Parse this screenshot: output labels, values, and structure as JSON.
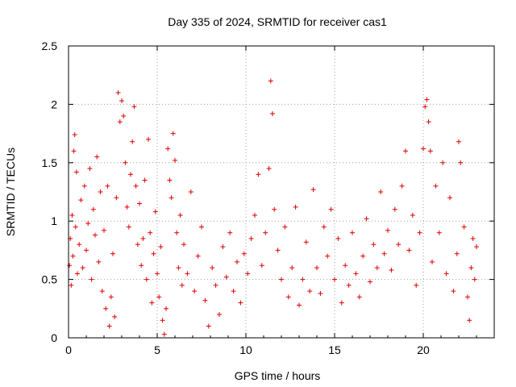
{
  "chart_data": {
    "type": "scatter",
    "title": "Day 335 of 2024, SRMTID for receiver cas1",
    "xlabel": "GPS time / hours",
    "ylabel": "SRMTID / TECUs",
    "xlim": [
      0,
      24
    ],
    "ylim": [
      0,
      2.5
    ],
    "xticks": [
      0,
      5,
      10,
      15,
      20
    ],
    "xtick_labels": [
      "0",
      "5",
      "10",
      "15",
      "20"
    ],
    "yticks": [
      0,
      0.5,
      1,
      1.5,
      2,
      2.5
    ],
    "ytick_labels": [
      "0",
      "0.5",
      "1",
      "1.5",
      "2",
      "2.5"
    ],
    "grid": true,
    "marker": "+",
    "color": "#e00000",
    "series": [
      {
        "name": "cas1",
        "points": [
          [
            0.05,
            0.62
          ],
          [
            0.1,
            0.85
          ],
          [
            0.15,
            0.45
          ],
          [
            0.2,
            1.05
          ],
          [
            0.25,
            0.7
          ],
          [
            0.3,
            1.6
          ],
          [
            0.35,
            1.74
          ],
          [
            0.4,
            0.95
          ],
          [
            0.45,
            1.42
          ],
          [
            0.5,
            0.55
          ],
          [
            0.6,
            0.8
          ],
          [
            0.7,
            1.18
          ],
          [
            0.8,
            0.6
          ],
          [
            0.9,
            1.3
          ],
          [
            1.0,
            0.75
          ],
          [
            1.1,
            0.98
          ],
          [
            1.2,
            1.45
          ],
          [
            1.3,
            0.5
          ],
          [
            1.4,
            1.1
          ],
          [
            1.5,
            0.88
          ],
          [
            1.6,
            1.55
          ],
          [
            1.7,
            0.65
          ],
          [
            1.8,
            1.25
          ],
          [
            1.9,
            0.4
          ],
          [
            2.0,
            0.92
          ],
          [
            2.1,
            0.25
          ],
          [
            2.2,
            1.3
          ],
          [
            2.3,
            0.1
          ],
          [
            2.4,
            0.35
          ],
          [
            2.5,
            0.72
          ],
          [
            2.6,
            0.18
          ],
          [
            2.7,
            1.2
          ],
          [
            2.8,
            2.1
          ],
          [
            2.9,
            1.85
          ],
          [
            3.0,
            2.03
          ],
          [
            3.1,
            1.9
          ],
          [
            3.2,
            1.5
          ],
          [
            3.3,
            1.12
          ],
          [
            3.4,
            0.95
          ],
          [
            3.5,
            1.4
          ],
          [
            3.6,
            1.68
          ],
          [
            3.7,
            1.98
          ],
          [
            3.8,
            1.3
          ],
          [
            3.9,
            0.8
          ],
          [
            4.0,
            1.15
          ],
          [
            4.1,
            0.62
          ],
          [
            4.2,
            0.85
          ],
          [
            4.3,
            1.35
          ],
          [
            4.4,
            0.5
          ],
          [
            4.5,
            1.7
          ],
          [
            4.6,
            0.9
          ],
          [
            4.7,
            0.3
          ],
          [
            4.8,
            0.72
          ],
          [
            4.9,
            1.08
          ],
          [
            5.0,
            0.55
          ],
          [
            5.1,
            0.35
          ],
          [
            5.2,
            0.78
          ],
          [
            5.3,
            0.15
          ],
          [
            5.4,
            0.03
          ],
          [
            5.5,
            0.25
          ],
          [
            5.6,
            1.62
          ],
          [
            5.7,
            1.35
          ],
          [
            5.8,
            1.2
          ],
          [
            5.9,
            1.75
          ],
          [
            6.0,
            1.52
          ],
          [
            6.1,
            0.9
          ],
          [
            6.2,
            0.6
          ],
          [
            6.3,
            1.05
          ],
          [
            6.4,
            0.45
          ],
          [
            6.5,
            0.8
          ],
          [
            6.7,
            0.55
          ],
          [
            6.9,
            1.25
          ],
          [
            7.1,
            0.4
          ],
          [
            7.3,
            0.7
          ],
          [
            7.5,
            0.95
          ],
          [
            7.7,
            0.32
          ],
          [
            7.9,
            0.1
          ],
          [
            8.1,
            0.6
          ],
          [
            8.3,
            0.45
          ],
          [
            8.5,
            0.2
          ],
          [
            8.7,
            0.78
          ],
          [
            8.9,
            0.52
          ],
          [
            9.1,
            0.9
          ],
          [
            9.3,
            0.4
          ],
          [
            9.5,
            0.65
          ],
          [
            9.7,
            0.3
          ],
          [
            9.9,
            0.72
          ],
          [
            10.1,
            0.55
          ],
          [
            10.3,
            0.85
          ],
          [
            10.5,
            1.05
          ],
          [
            10.7,
            1.4
          ],
          [
            10.9,
            0.62
          ],
          [
            11.1,
            0.9
          ],
          [
            11.3,
            1.45
          ],
          [
            11.4,
            2.2
          ],
          [
            11.5,
            1.92
          ],
          [
            11.6,
            1.1
          ],
          [
            11.8,
            0.75
          ],
          [
            12.0,
            0.5
          ],
          [
            12.2,
            0.95
          ],
          [
            12.4,
            0.35
          ],
          [
            12.6,
            0.6
          ],
          [
            12.8,
            1.12
          ],
          [
            13.0,
            0.28
          ],
          [
            13.2,
            0.5
          ],
          [
            13.4,
            0.82
          ],
          [
            13.6,
            0.4
          ],
          [
            13.8,
            1.27
          ],
          [
            14.0,
            0.6
          ],
          [
            14.2,
            0.38
          ],
          [
            14.4,
            0.95
          ],
          [
            14.6,
            0.7
          ],
          [
            14.8,
            1.1
          ],
          [
            15.0,
            0.5
          ],
          [
            15.2,
            0.85
          ],
          [
            15.4,
            0.3
          ],
          [
            15.6,
            0.62
          ],
          [
            15.8,
            0.45
          ],
          [
            16.0,
            0.9
          ],
          [
            16.2,
            0.55
          ],
          [
            16.4,
            0.35
          ],
          [
            16.6,
            0.7
          ],
          [
            16.8,
            1.02
          ],
          [
            17.0,
            0.48
          ],
          [
            17.2,
            0.8
          ],
          [
            17.4,
            0.6
          ],
          [
            17.6,
            1.25
          ],
          [
            17.8,
            0.72
          ],
          [
            18.0,
            0.92
          ],
          [
            18.2,
            0.58
          ],
          [
            18.4,
            1.1
          ],
          [
            18.6,
            0.8
          ],
          [
            18.8,
            1.3
          ],
          [
            19.0,
            1.6
          ],
          [
            19.2,
            0.75
          ],
          [
            19.4,
            1.05
          ],
          [
            19.6,
            0.45
          ],
          [
            19.8,
            0.9
          ],
          [
            20.0,
            1.62
          ],
          [
            20.1,
            1.98
          ],
          [
            20.2,
            2.04
          ],
          [
            20.3,
            1.85
          ],
          [
            20.4,
            1.6
          ],
          [
            20.5,
            0.65
          ],
          [
            20.7,
            1.3
          ],
          [
            20.9,
            0.9
          ],
          [
            21.1,
            1.5
          ],
          [
            21.3,
            0.55
          ],
          [
            21.5,
            1.2
          ],
          [
            21.7,
            0.4
          ],
          [
            21.9,
            0.72
          ],
          [
            22.0,
            1.68
          ],
          [
            22.1,
            1.5
          ],
          [
            22.3,
            0.95
          ],
          [
            22.5,
            0.35
          ],
          [
            22.6,
            0.15
          ],
          [
            22.7,
            0.6
          ],
          [
            22.8,
            0.85
          ],
          [
            22.9,
            0.5
          ],
          [
            23.0,
            0.78
          ]
        ]
      }
    ]
  }
}
